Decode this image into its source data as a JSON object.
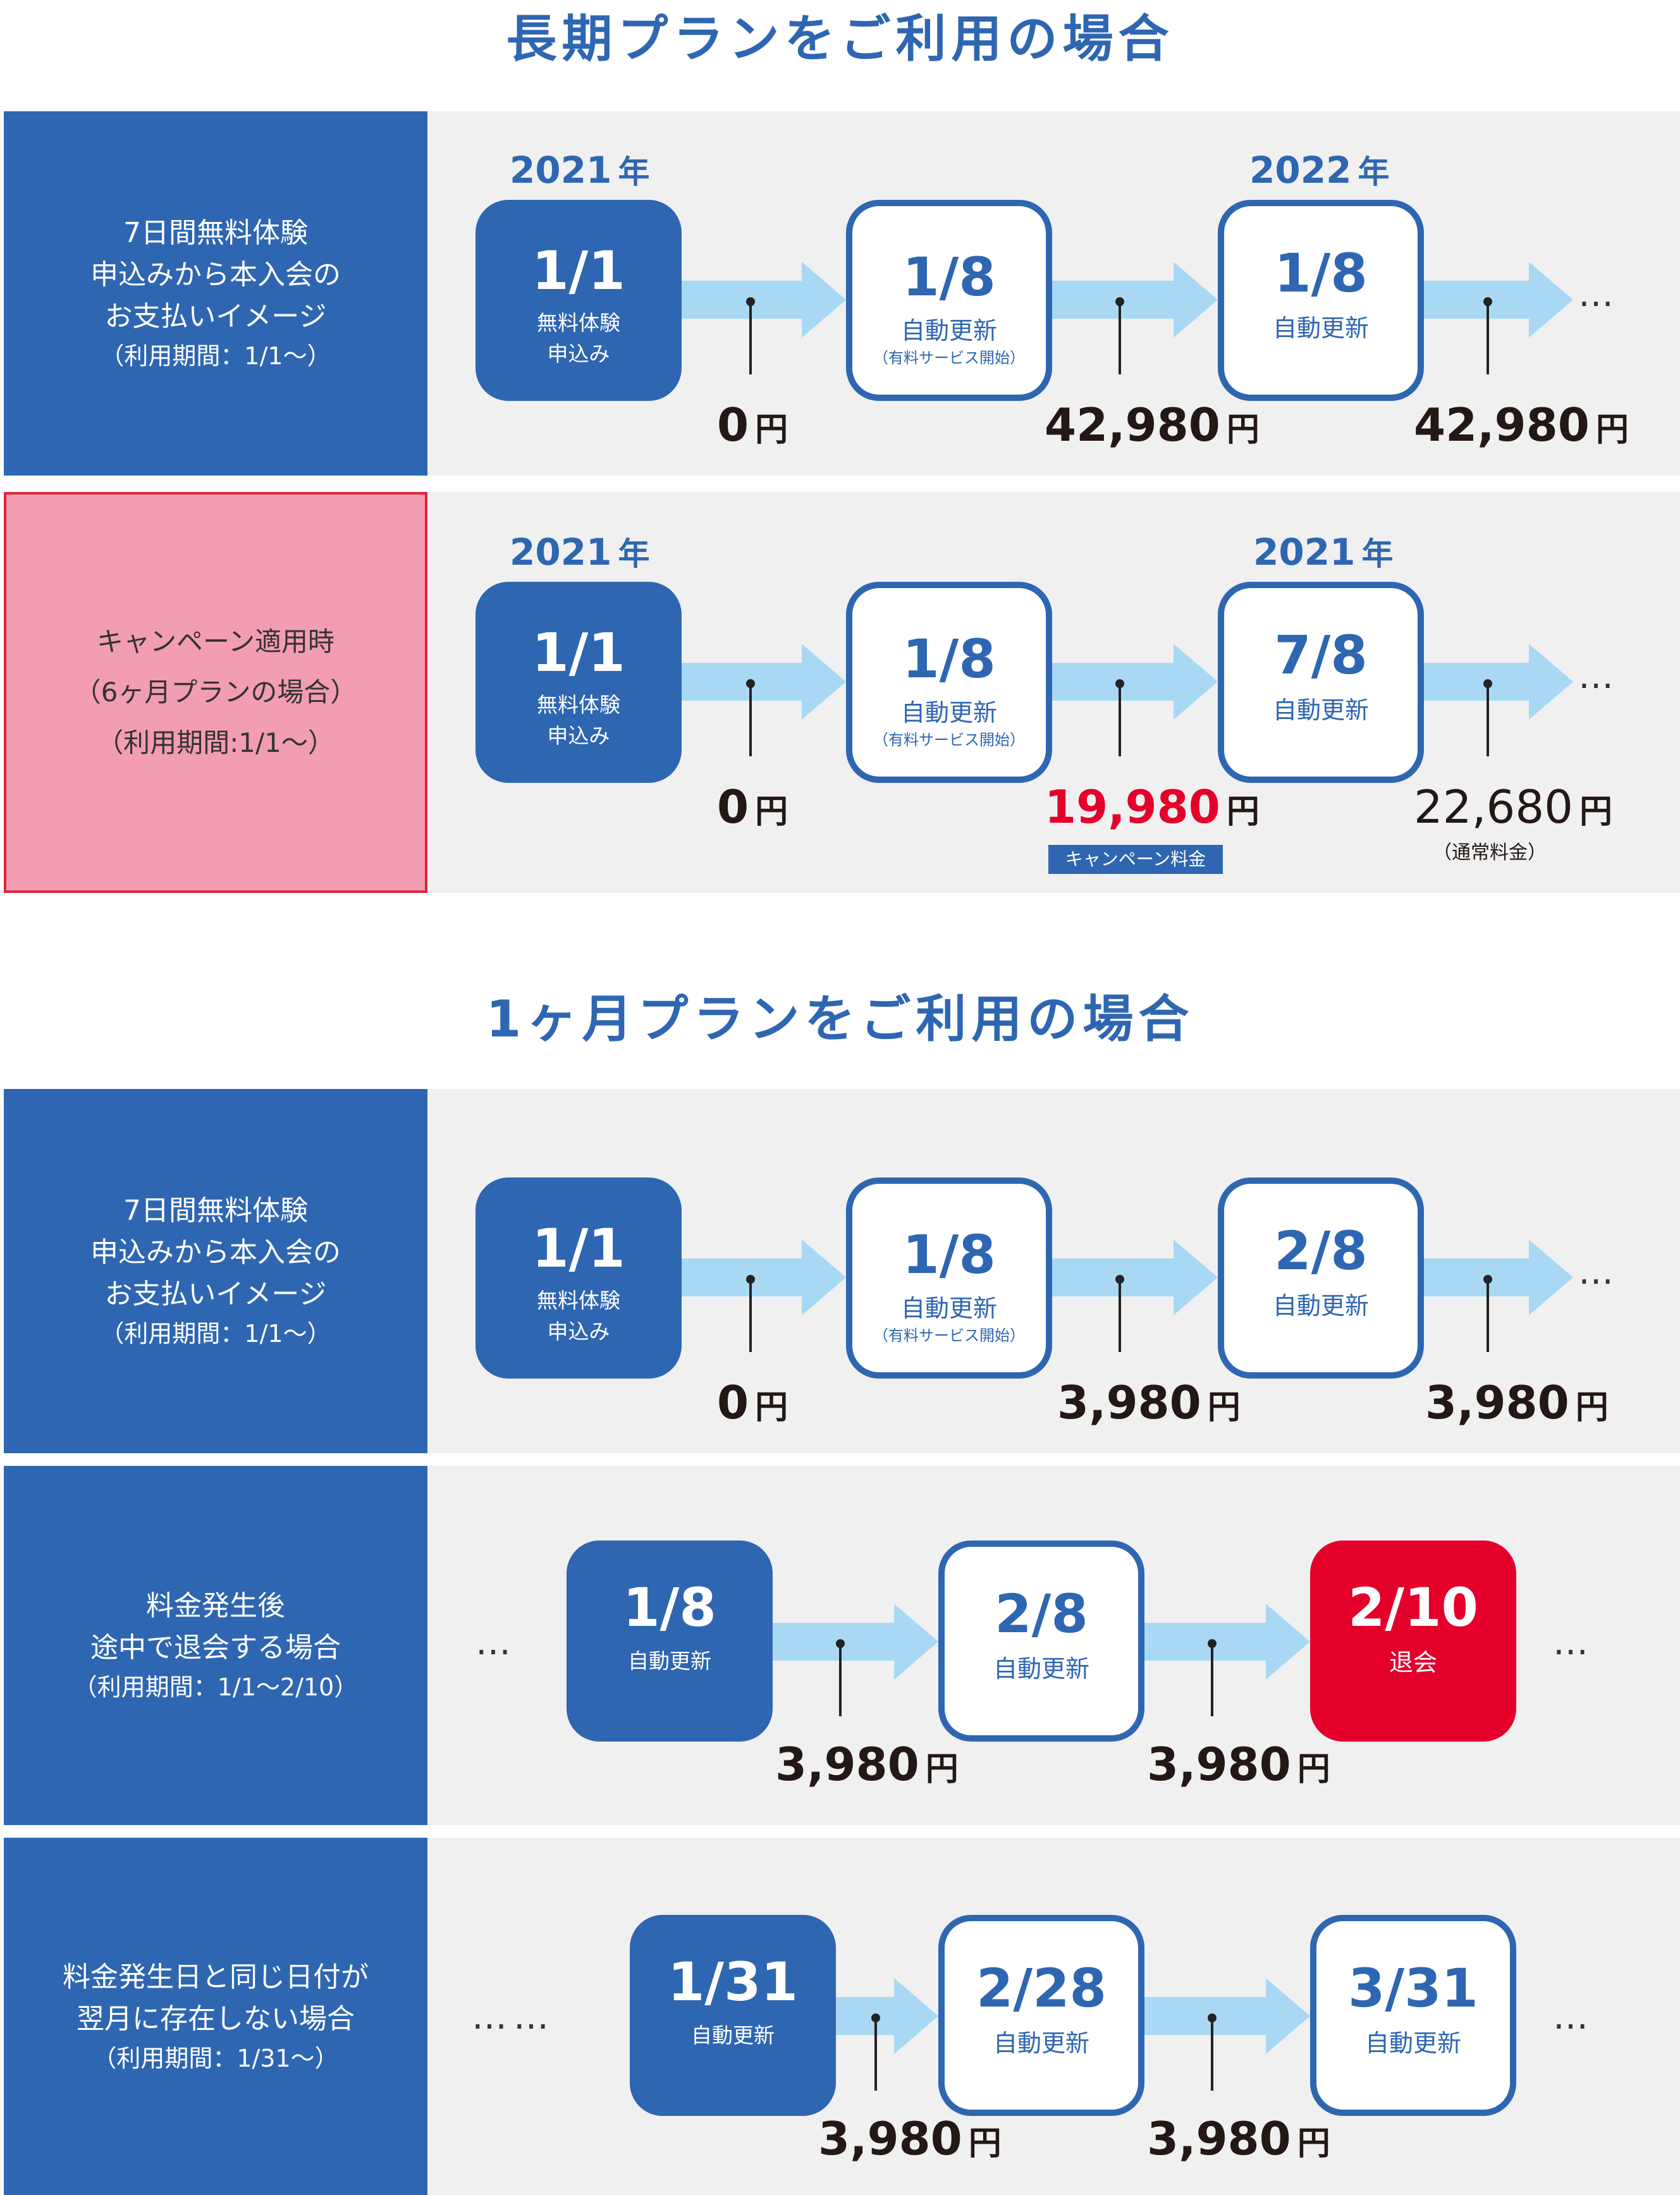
{
  "colors": {
    "brand_blue": "#2E66B1",
    "arrow_blue": "#A9D8F4",
    "red": "#E4002B",
    "pink": "#F29DB1",
    "gray_bg": "#F0F0F0"
  },
  "titles": {
    "long_plan": "長期プランをご利用の場合",
    "monthly_plan": "1ヶ月プランをご利用の場合"
  },
  "rows": {
    "r1": {
      "label": [
        "7日間無料体験",
        "申込みから本入会の",
        "お支払いイメージ"
      ],
      "label_sub": "（利用期間：1/1〜）",
      "year_a": "2021",
      "year_b": "2022",
      "nen": "年",
      "node1": {
        "date": "1/1",
        "l1": "無料体験",
        "l2": "申込み"
      },
      "node2": {
        "date": "1/8",
        "l1": "自動更新",
        "note": "（有料サービス開始）"
      },
      "node3": {
        "date": "1/8",
        "l1": "自動更新"
      },
      "prices": [
        "0",
        "42,980",
        "42,980"
      ],
      "yen": "円",
      "ellipsis": "…"
    },
    "r2": {
      "label": [
        "キャンペーン適用時",
        "（6ヶ月プランの場合）",
        "（利用期間:1/1〜）"
      ],
      "year_a": "2021",
      "year_b": "2021",
      "nen": "年",
      "node1": {
        "date": "1/1",
        "l1": "無料体験",
        "l2": "申込み"
      },
      "node2": {
        "date": "1/8",
        "l1": "自動更新",
        "note": "（有料サービス開始）"
      },
      "node3": {
        "date": "7/8",
        "l1": "自動更新"
      },
      "prices": [
        "0",
        "19,980",
        "22,680"
      ],
      "badge": "キャンペーン料金",
      "normal_note": "（通常料金）",
      "yen": "円",
      "ellipsis": "…"
    },
    "r3": {
      "label": [
        "7日間無料体験",
        "申込みから本入会の",
        "お支払いイメージ"
      ],
      "label_sub": "（利用期間：1/1〜）",
      "node1": {
        "date": "1/1",
        "l1": "無料体験",
        "l2": "申込み"
      },
      "node2": {
        "date": "1/8",
        "l1": "自動更新",
        "note": "（有料サービス開始）"
      },
      "node3": {
        "date": "2/8",
        "l1": "自動更新"
      },
      "prices": [
        "0",
        "3,980",
        "3,980"
      ],
      "yen": "円",
      "ellipsis": "…"
    },
    "r4": {
      "label": [
        "料金発生後",
        "途中で退会する場合"
      ],
      "label_sub": "（利用期間：1/1〜2/10）",
      "node1": {
        "date": "1/8",
        "l1": "自動更新"
      },
      "node2": {
        "date": "2/8",
        "l1": "自動更新"
      },
      "node3": {
        "date": "2/10",
        "l1": "退会"
      },
      "prices": [
        "3,980",
        "3,980"
      ],
      "yen": "円",
      "ellipsis": "…",
      "ellipsis_left": "…"
    },
    "r5": {
      "label": [
        "料金発生日と同じ日付が",
        "翌月に存在しない場合"
      ],
      "label_sub": "（利用期間：1/31〜）",
      "node1": {
        "date": "1/31",
        "l1": "自動更新"
      },
      "node2": {
        "date": "2/28",
        "l1": "自動更新"
      },
      "node3": {
        "date": "3/31",
        "l1": "自動更新"
      },
      "prices": [
        "3,980",
        "3,980"
      ],
      "yen": "円",
      "ellipsis": "…",
      "ellipsis_left": "……"
    }
  }
}
